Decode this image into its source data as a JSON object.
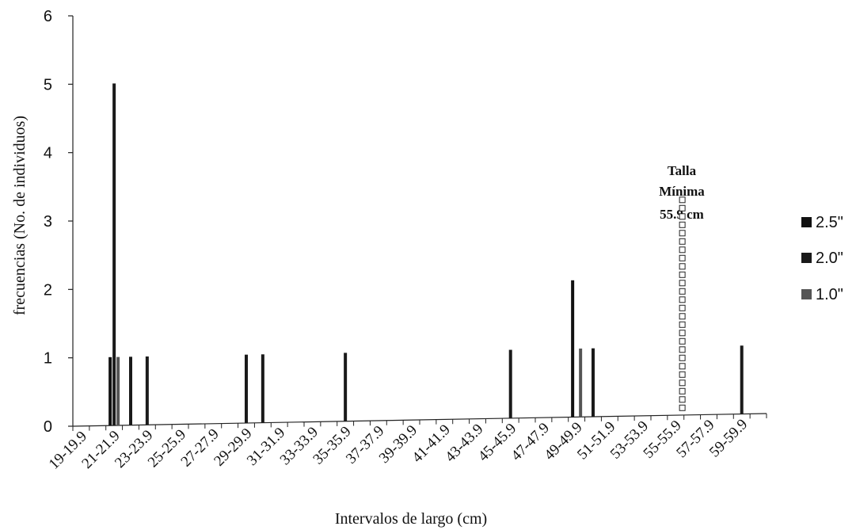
{
  "chart_data": {
    "type": "bar",
    "xlabel": "Intervalos de largo (cm)",
    "ylabel": "frecuencias (No. de individuos)",
    "ylim": [
      0,
      6
    ],
    "yticks": [
      0,
      1,
      2,
      3,
      4,
      5,
      6
    ],
    "categories": [
      "19-19.9",
      "20-20.9",
      "21-21.9",
      "22-22.9",
      "23-23.9",
      "24-24.9",
      "25-25.9",
      "26-26.9",
      "27-27.9",
      "28-28.9",
      "29-29.9",
      "30-30.9",
      "31-31.9",
      "32-32.9",
      "33-33.9",
      "34-34.9",
      "35-35.9",
      "36-36.9",
      "37-37.9",
      "38-38.9",
      "39-39.9",
      "40-40.9",
      "41-41.9",
      "42-42.9",
      "43-43.9",
      "44-44.9",
      "45-45.9",
      "46-46.9",
      "47-47.9",
      "48-48.9",
      "49-49.9",
      "50-50.9",
      "51-51.9",
      "52-52.9",
      "53-53.9",
      "54-54.9",
      "55-55.9",
      "56-56.9",
      "57-57.9",
      "58-58.9",
      "59-59.9",
      "60-60.9"
    ],
    "tick_labels": [
      "19-19.9",
      "21-21.9",
      "23-23.9",
      "25-25.9",
      "27-27.9",
      "29-29.9",
      "31-31.9",
      "33-33.9",
      "35-35.9",
      "37-37.9",
      "39-39.9",
      "41-41.9",
      "43-43.9",
      "45-45.9",
      "47-47.9",
      "49-49.9",
      "51-51.9",
      "53-53.9",
      "55-55.9",
      "57-57.9",
      "59-59.9"
    ],
    "series": [
      {
        "name": "2.5\"",
        "color": "#111111",
        "values": [
          0,
          0,
          1,
          0,
          0,
          0,
          0,
          0,
          0,
          0,
          0,
          0,
          0,
          0,
          0,
          0,
          0,
          0,
          0,
          0,
          0,
          0,
          0,
          0,
          0,
          0,
          0,
          0,
          0,
          0,
          2,
          0,
          0,
          0,
          0,
          0,
          0,
          0,
          0,
          0,
          0,
          0
        ]
      },
      {
        "name": "2.0\"",
        "color": "#1a1a1a",
        "values": [
          0,
          0,
          5,
          1,
          1,
          0,
          0,
          0,
          0,
          0,
          1,
          1,
          0,
          0,
          0,
          0,
          1,
          0,
          0,
          0,
          0,
          0,
          0,
          0,
          0,
          0,
          1,
          0,
          0,
          0,
          0,
          1,
          0,
          0,
          0,
          0,
          0,
          0,
          0,
          0,
          1,
          0
        ]
      },
      {
        "name": "1.0\"",
        "color": "#555555",
        "values": [
          0,
          0,
          1,
          0,
          0,
          0,
          0,
          0,
          0,
          0,
          0,
          0,
          0,
          0,
          0,
          0,
          0,
          0,
          0,
          0,
          0,
          0,
          0,
          0,
          0,
          0,
          0,
          0,
          0,
          0,
          1,
          0,
          0,
          0,
          0,
          0,
          0,
          0,
          0,
          0,
          0,
          0
        ]
      }
    ],
    "grid": false,
    "legend_position": "right",
    "annotation": {
      "lines": [
        "Talla",
        "Mínima",
        "55.9 cm"
      ],
      "x_value": 55.9,
      "y_top": 3.35,
      "style": "dotted-squares"
    }
  }
}
